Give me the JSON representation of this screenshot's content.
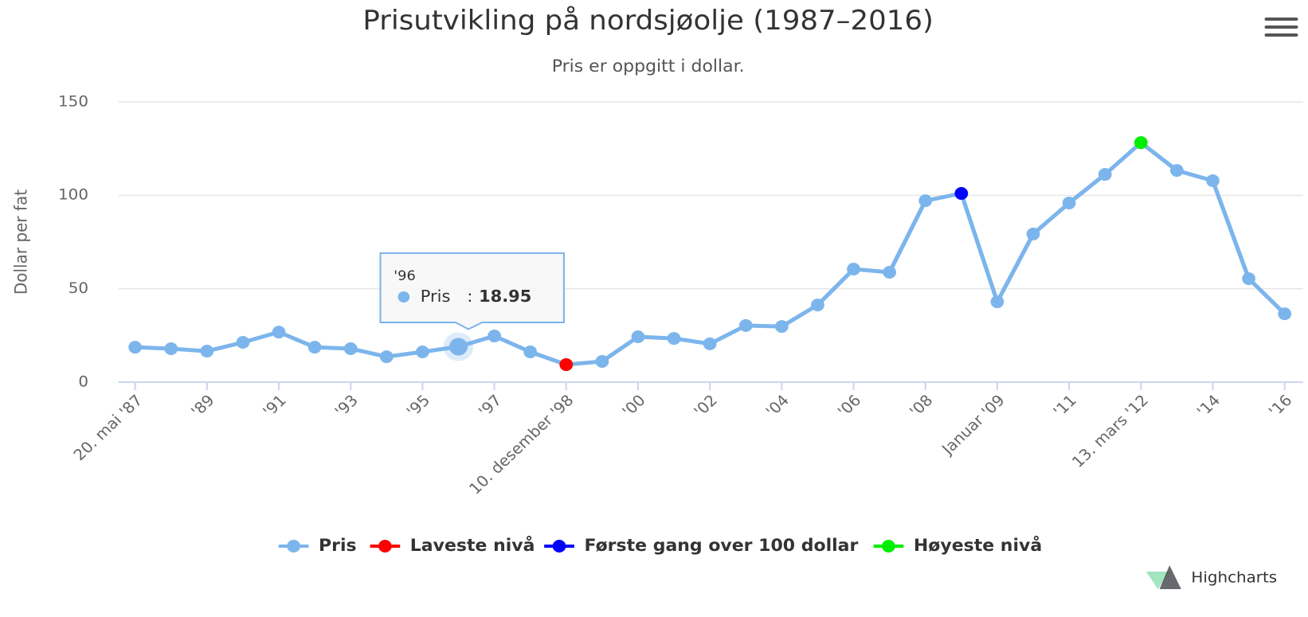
{
  "chart_data": {
    "type": "line",
    "title": "Prisutvikling på nordsjøolje (1987–2016)",
    "subtitle": "Pris er oppgitt i dollar.",
    "y_label": "Dollar per fat",
    "categories": [
      "20. mai '87",
      null,
      "'89",
      null,
      "'91",
      null,
      "'93",
      null,
      "'95",
      null,
      "'97",
      null,
      "10. desember '98",
      null,
      "'00",
      null,
      "'02",
      null,
      "'04",
      null,
      "'06",
      null,
      "'08",
      null,
      "Januar '09",
      null,
      "'11",
      null,
      "13. mars '12",
      null,
      "'14",
      null,
      "'16"
    ],
    "series": [
      {
        "name": "Pris",
        "color": "#7cb5ec",
        "line": true,
        "values": [
          18.7,
          17.9,
          16.6,
          21.3,
          26.8,
          18.7,
          17.9,
          13.6,
          16.2,
          18.95,
          24.7,
          16.2,
          9.4,
          11.1,
          24.3,
          23.4,
          20.5,
          30.3,
          29.8,
          41.3,
          60.5,
          58.8,
          97.1,
          101,
          43,
          79.3,
          95.9,
          111.2,
          128.2,
          113.3,
          107.8,
          55.4,
          36.6
        ]
      },
      {
        "name": "Laveste nivå",
        "color": "#ff0000",
        "line": false,
        "values": [
          null,
          null,
          null,
          null,
          null,
          null,
          null,
          null,
          null,
          null,
          null,
          null,
          9.4,
          null,
          null,
          null,
          null,
          null,
          null,
          null,
          null,
          null,
          null,
          null,
          null,
          null,
          null,
          null,
          null,
          null,
          null,
          null,
          null
        ]
      },
      {
        "name": "Første gang over 100 dollar",
        "color": "#0000ff",
        "line": false,
        "values": [
          null,
          null,
          null,
          null,
          null,
          null,
          null,
          null,
          null,
          null,
          null,
          null,
          null,
          null,
          null,
          null,
          null,
          null,
          null,
          null,
          null,
          null,
          null,
          101,
          null,
          null,
          null,
          null,
          null,
          null,
          null,
          null,
          null
        ]
      },
      {
        "name": "Høyeste nivå",
        "color": "#00ee00",
        "line": false,
        "values": [
          null,
          null,
          null,
          null,
          null,
          null,
          null,
          null,
          null,
          null,
          null,
          null,
          null,
          null,
          null,
          null,
          null,
          null,
          null,
          null,
          null,
          null,
          null,
          null,
          null,
          null,
          null,
          null,
          128.2,
          null,
          null,
          null,
          null
        ]
      }
    ],
    "ylim": [
      0,
      150
    ],
    "yticks": [
      0,
      50,
      100,
      150
    ],
    "grid": true,
    "tooltip": {
      "header": "'96",
      "index": 9
    },
    "credits": "Highcharts"
  }
}
